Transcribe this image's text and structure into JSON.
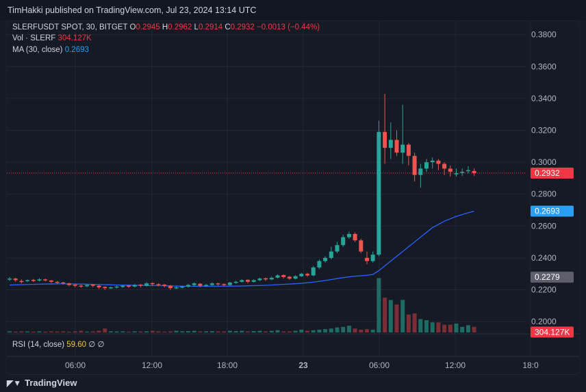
{
  "header": {
    "title": "TimHakki published on TradingView.com, Jul 23, 2024 13:14 UTC"
  },
  "legend": {
    "symbol": "SLERFUSDT SPOT, 30, BITGET",
    "o_label": "O",
    "o_value": "0.2945",
    "h_label": "H",
    "h_value": "0.2962",
    "l_label": "L",
    "l_value": "0.2914",
    "c_label": "C",
    "c_value": "0.2932",
    "change": "−0.0013 (−0.44%)",
    "vol_label": "Vol · SLERF",
    "vol_value": "304.127K",
    "ma_label": "MA (30, close)",
    "ma_value": "0.2693"
  },
  "rsi": {
    "label": "RSI (14, close)",
    "value": "59.60",
    "extra1": "∅",
    "extra2": "∅"
  },
  "footer": {
    "brand": "TradingView",
    "logo_icon": "tradingview-logo-icon"
  },
  "colors": {
    "up": "#26a69a",
    "down": "#ef5350",
    "ma": "#2962ff",
    "bg": "#161a25",
    "grid": "#232734"
  },
  "chart_data": {
    "type": "candlestick",
    "y_ticks": [
      "0.3800",
      "0.3600",
      "0.3400",
      "0.3200",
      "0.3000",
      "0.2800",
      "0.2600",
      "0.2400",
      "0.2200",
      "0.2000"
    ],
    "ylim": [
      0.1975,
      0.385
    ],
    "x_ticks": [
      "06:00",
      "12:00",
      "18:00",
      "23",
      "06:00",
      "12:00",
      "18:0"
    ],
    "price_badges": [
      {
        "label": "0.2932",
        "value": 0.2932,
        "color": "#f23645"
      },
      {
        "label": "0.2693",
        "value": 0.2693,
        "color": "#2a9df4"
      },
      {
        "label": "0.2279",
        "value": 0.2279,
        "color": "#5d606b"
      },
      {
        "label": "304.127K",
        "value": 0.1935,
        "color": "#f23645"
      }
    ],
    "last_price": 0.2932,
    "candles_close": [
      0.227,
      0.226,
      0.225,
      0.226,
      0.2255,
      0.2265,
      0.226,
      0.225,
      0.2245,
      0.224,
      0.223,
      0.2225,
      0.222,
      0.223,
      0.2225,
      0.2215,
      0.221,
      0.2215,
      0.222,
      0.2225,
      0.222,
      0.223,
      0.2225,
      0.224,
      0.2235,
      0.223,
      0.2225,
      0.221,
      0.2215,
      0.222,
      0.223,
      0.224,
      0.2225,
      0.223,
      0.224,
      0.2235,
      0.223,
      0.2245,
      0.225,
      0.226,
      0.225,
      0.226,
      0.227,
      0.2265,
      0.2275,
      0.229,
      0.228,
      0.227,
      0.2285,
      0.23,
      0.229,
      0.234,
      0.238,
      0.24,
      0.244,
      0.248,
      0.253,
      0.255,
      0.251,
      0.244,
      0.238,
      0.242,
      0.319,
      0.309,
      0.314,
      0.306,
      0.311,
      0.304,
      0.292,
      0.296,
      0.3,
      0.301,
      0.299,
      0.296,
      0.294,
      0.293,
      0.294,
      0.295,
      0.2932
    ],
    "candles_open": [
      0.2265,
      0.227,
      0.2255,
      0.2255,
      0.2262,
      0.2258,
      0.2265,
      0.2258,
      0.225,
      0.2246,
      0.224,
      0.2232,
      0.2226,
      0.2222,
      0.2232,
      0.2226,
      0.2218,
      0.221,
      0.2214,
      0.2218,
      0.2226,
      0.222,
      0.2232,
      0.2226,
      0.2242,
      0.2236,
      0.2232,
      0.2226,
      0.221,
      0.2214,
      0.222,
      0.223,
      0.2238,
      0.2224,
      0.223,
      0.224,
      0.2236,
      0.223,
      0.2244,
      0.225,
      0.2262,
      0.225,
      0.226,
      0.2272,
      0.2265,
      0.2276,
      0.2292,
      0.2282,
      0.227,
      0.2285,
      0.23,
      0.229,
      0.234,
      0.238,
      0.24,
      0.244,
      0.248,
      0.253,
      0.255,
      0.251,
      0.24,
      0.238,
      0.242,
      0.319,
      0.309,
      0.314,
      0.306,
      0.311,
      0.304,
      0.292,
      0.296,
      0.3,
      0.301,
      0.299,
      0.296,
      0.293,
      0.2935,
      0.2945,
      0.2945
    ],
    "candles_high": [
      0.228,
      0.2275,
      0.2265,
      0.2265,
      0.2268,
      0.2272,
      0.227,
      0.2262,
      0.2255,
      0.225,
      0.2245,
      0.2238,
      0.2232,
      0.2236,
      0.2236,
      0.223,
      0.2222,
      0.222,
      0.2226,
      0.223,
      0.223,
      0.2236,
      0.2236,
      0.2248,
      0.2246,
      0.224,
      0.2236,
      0.223,
      0.2222,
      0.2226,
      0.2236,
      0.2246,
      0.2242,
      0.2236,
      0.2246,
      0.2244,
      0.224,
      0.225,
      0.2256,
      0.2266,
      0.2266,
      0.2266,
      0.2276,
      0.2276,
      0.2282,
      0.2296,
      0.2296,
      0.2286,
      0.2292,
      0.2306,
      0.2306,
      0.235,
      0.239,
      0.241,
      0.247,
      0.25,
      0.2545,
      0.2565,
      0.256,
      0.252,
      0.244,
      0.244,
      0.326,
      0.343,
      0.325,
      0.32,
      0.336,
      0.312,
      0.306,
      0.299,
      0.302,
      0.303,
      0.302,
      0.3,
      0.298,
      0.296,
      0.296,
      0.2975,
      0.2962
    ],
    "candles_low": [
      0.2255,
      0.225,
      0.224,
      0.2248,
      0.2248,
      0.2252,
      0.2252,
      0.224,
      0.2235,
      0.2232,
      0.2222,
      0.2215,
      0.2212,
      0.2216,
      0.2215,
      0.2205,
      0.22,
      0.2205,
      0.2208,
      0.2212,
      0.2212,
      0.2215,
      0.2215,
      0.222,
      0.2225,
      0.2222,
      0.2215,
      0.22,
      0.2205,
      0.2208,
      0.2212,
      0.2222,
      0.2216,
      0.2218,
      0.2225,
      0.2226,
      0.2222,
      0.2225,
      0.2238,
      0.2245,
      0.224,
      0.2245,
      0.2255,
      0.2255,
      0.226,
      0.2272,
      0.227,
      0.2262,
      0.2265,
      0.228,
      0.2282,
      0.2285,
      0.233,
      0.237,
      0.239,
      0.243,
      0.247,
      0.252,
      0.25,
      0.243,
      0.236,
      0.237,
      0.241,
      0.299,
      0.302,
      0.304,
      0.299,
      0.298,
      0.288,
      0.284,
      0.294,
      0.296,
      0.295,
      0.292,
      0.291,
      0.291,
      0.2915,
      0.293,
      0.2914
    ],
    "volumes": [
      0.02,
      0.015,
      0.02,
      0.018,
      0.015,
      0.02,
      0.015,
      0.02,
      0.018,
      0.02,
      0.015,
      0.02,
      0.03,
      0.015,
      0.02,
      0.03,
      0.07,
      0.02,
      0.018,
      0.02,
      0.015,
      0.02,
      0.018,
      0.02,
      0.03,
      0.02,
      0.015,
      0.02,
      0.03,
      0.02,
      0.025,
      0.03,
      0.02,
      0.02,
      0.025,
      0.02,
      0.02,
      0.03,
      0.025,
      0.03,
      0.02,
      0.025,
      0.03,
      0.02,
      0.03,
      0.04,
      0.02,
      0.02,
      0.03,
      0.05,
      0.03,
      0.04,
      0.05,
      0.06,
      0.07,
      0.09,
      0.1,
      0.12,
      0.07,
      0.05,
      0.06,
      0.05,
      0.97,
      0.62,
      0.58,
      0.5,
      0.58,
      0.32,
      0.34,
      0.24,
      0.22,
      0.18,
      0.18,
      0.14,
      0.14,
      0.16,
      0.1,
      0.13,
      0.1
    ],
    "ma": [
      0.223,
      0.2231,
      0.2232,
      0.2233,
      0.2234,
      0.2235,
      0.2236,
      0.2236,
      0.2237,
      0.2237,
      0.2237,
      0.2236,
      0.2236,
      0.2235,
      0.2234,
      0.2233,
      0.2232,
      0.2231,
      0.223,
      0.2229,
      0.2229,
      0.2228,
      0.2228,
      0.2227,
      0.2226,
      0.2226,
      0.2225,
      0.2224,
      0.2223,
      0.2222,
      0.2222,
      0.2222,
      0.2222,
      0.2222,
      0.2222,
      0.2222,
      0.2222,
      0.2223,
      0.2223,
      0.2224,
      0.2225,
      0.2226,
      0.2227,
      0.2228,
      0.223,
      0.2232,
      0.2234,
      0.2236,
      0.2238,
      0.2241,
      0.2244,
      0.2248,
      0.2253,
      0.2258,
      0.2264,
      0.227,
      0.2276,
      0.2281,
      0.2285,
      0.2288,
      0.2291,
      0.2296,
      0.232,
      0.235,
      0.238,
      0.241,
      0.244,
      0.247,
      0.25,
      0.253,
      0.256,
      0.259,
      0.261,
      0.263,
      0.2645,
      0.266,
      0.2672,
      0.2683,
      0.2693
    ]
  }
}
